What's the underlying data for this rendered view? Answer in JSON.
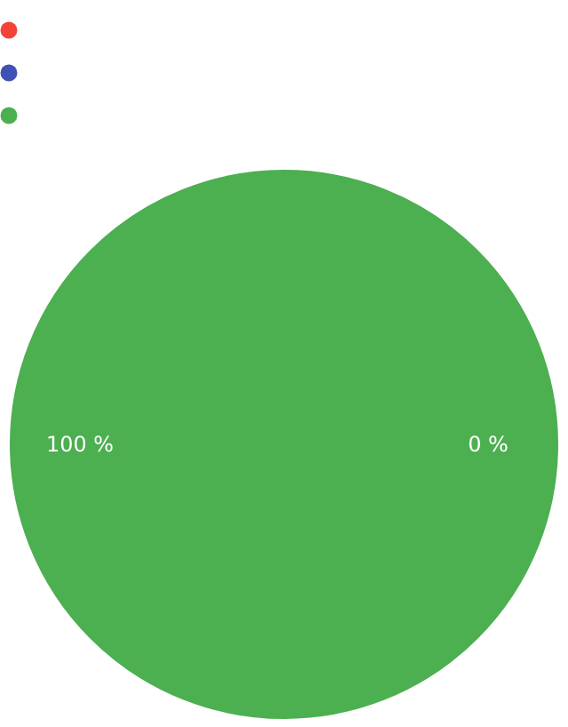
{
  "chart_data": {
    "type": "pie",
    "categories": [
      null,
      null,
      null
    ],
    "values": [
      0,
      0,
      100
    ],
    "colors": [
      "#f44336",
      "#3f51b5",
      "#4caf50"
    ],
    "value_labels": [
      "0 %",
      null,
      "100 %"
    ]
  }
}
